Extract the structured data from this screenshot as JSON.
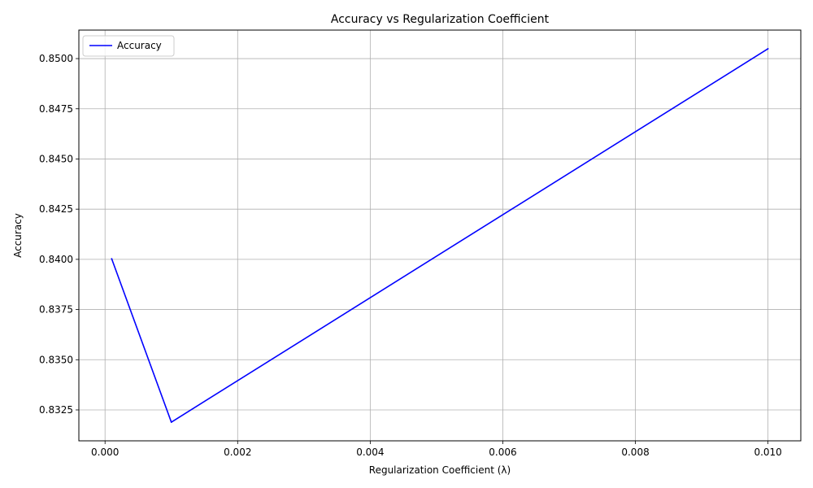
{
  "chart_data": {
    "type": "line",
    "title": "Accuracy vs Regularization Coefficient",
    "xlabel": "Regularization Coefficient (λ)",
    "ylabel": "Accuracy",
    "x": [
      0.0001,
      0.001,
      0.01
    ],
    "series": [
      {
        "name": "Accuracy",
        "color": "#0000ff",
        "values": [
          0.84003,
          0.83189,
          0.85049
        ]
      }
    ],
    "xlim": [
      -0.000395,
      0.010495
    ],
    "ylim": [
      0.83096,
      0.85142
    ],
    "xticks": [
      0,
      0.002,
      0.004,
      0.006,
      0.008,
      0.01
    ],
    "xtick_labels": [
      "0.000",
      "0.002",
      "0.004",
      "0.006",
      "0.008",
      "0.010"
    ],
    "yticks": [
      0.8325,
      0.835,
      0.8375,
      0.84,
      0.8425,
      0.845,
      0.8475,
      0.85
    ],
    "ytick_labels": [
      "0.8325",
      "0.8350",
      "0.8375",
      "0.8400",
      "0.8425",
      "0.8450",
      "0.8475",
      "0.8500"
    ],
    "grid": true,
    "legend_position": "top-left"
  }
}
